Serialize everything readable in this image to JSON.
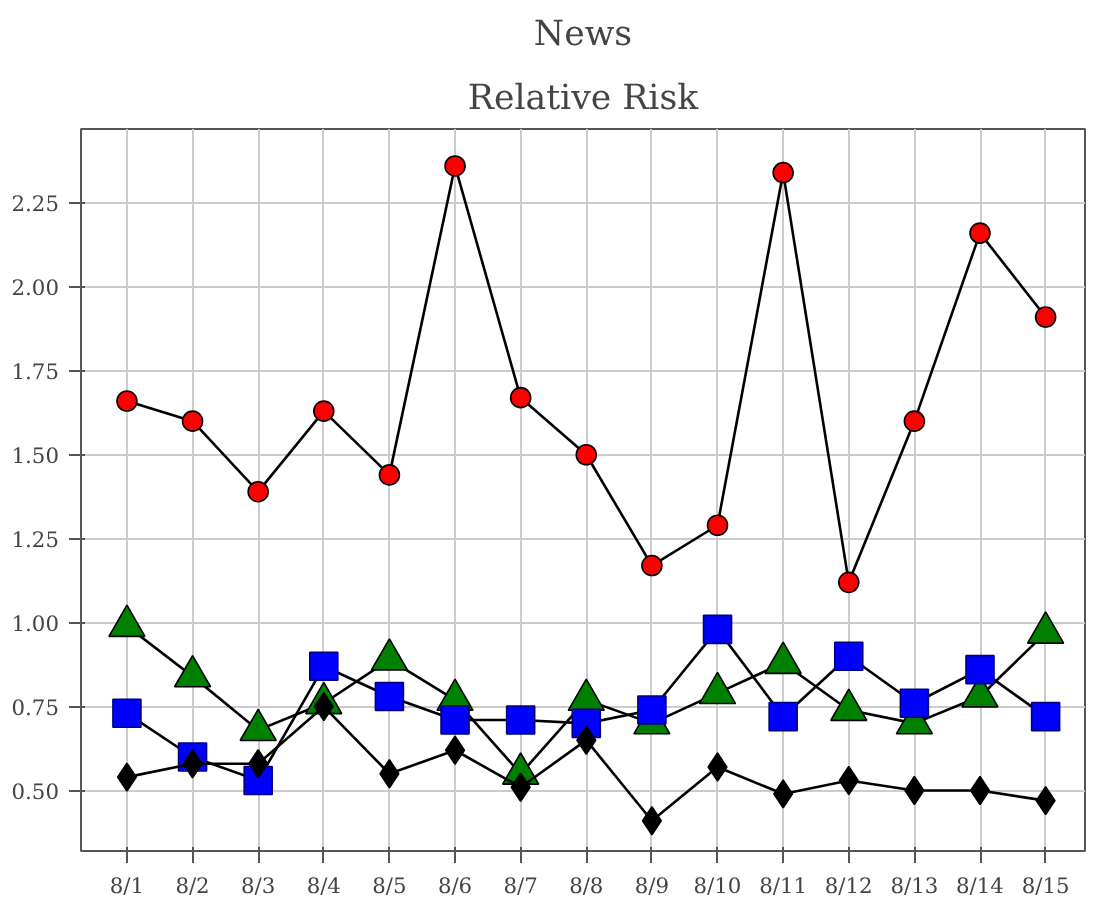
{
  "chart_data": {
    "type": "line",
    "title": "News",
    "subtitle": "Relative Risk",
    "categories": [
      "8/1",
      "8/2",
      "8/3",
      "8/4",
      "8/5",
      "8/6",
      "8/7",
      "8/8",
      "8/9",
      "8/10",
      "8/11",
      "8/12",
      "8/13",
      "8/14",
      "8/15"
    ],
    "ylim": [
      0.32,
      2.47
    ],
    "yticks": [
      {
        "value": 0.5,
        "label": "0.50"
      },
      {
        "value": 0.75,
        "label": "0.75"
      },
      {
        "value": 1.0,
        "label": "1.00"
      },
      {
        "value": 1.25,
        "label": "1.25"
      },
      {
        "value": 1.5,
        "label": "1.50"
      },
      {
        "value": 1.75,
        "label": "1.75"
      },
      {
        "value": 2.0,
        "label": "2.00"
      },
      {
        "value": 2.25,
        "label": "2.25"
      }
    ],
    "grid": true,
    "line_style": "solid",
    "series": [
      {
        "color": "#ff0000",
        "marker": "circle",
        "values": [
          1.66,
          1.6,
          1.39,
          1.63,
          1.44,
          2.36,
          1.67,
          1.5,
          1.17,
          1.29,
          2.34,
          1.12,
          1.6,
          2.16,
          1.91
        ]
      },
      {
        "color": "#008000",
        "marker": "triangle",
        "values": [
          0.99,
          0.84,
          0.68,
          0.76,
          0.89,
          0.77,
          0.55,
          0.77,
          0.7,
          0.79,
          0.88,
          0.74,
          0.7,
          0.78,
          0.97
        ]
      },
      {
        "color": "#0000ff",
        "marker": "square",
        "values": [
          0.73,
          0.6,
          0.53,
          0.87,
          0.78,
          0.71,
          0.71,
          0.7,
          0.74,
          0.98,
          0.72,
          0.9,
          0.76,
          0.86,
          0.72
        ]
      },
      {
        "color": "#000000",
        "marker": "diamond",
        "values": [
          0.54,
          0.58,
          0.58,
          0.75,
          0.55,
          0.62,
          0.51,
          0.65,
          0.41,
          0.57,
          0.49,
          0.53,
          0.5,
          0.5,
          0.47
        ]
      }
    ]
  }
}
